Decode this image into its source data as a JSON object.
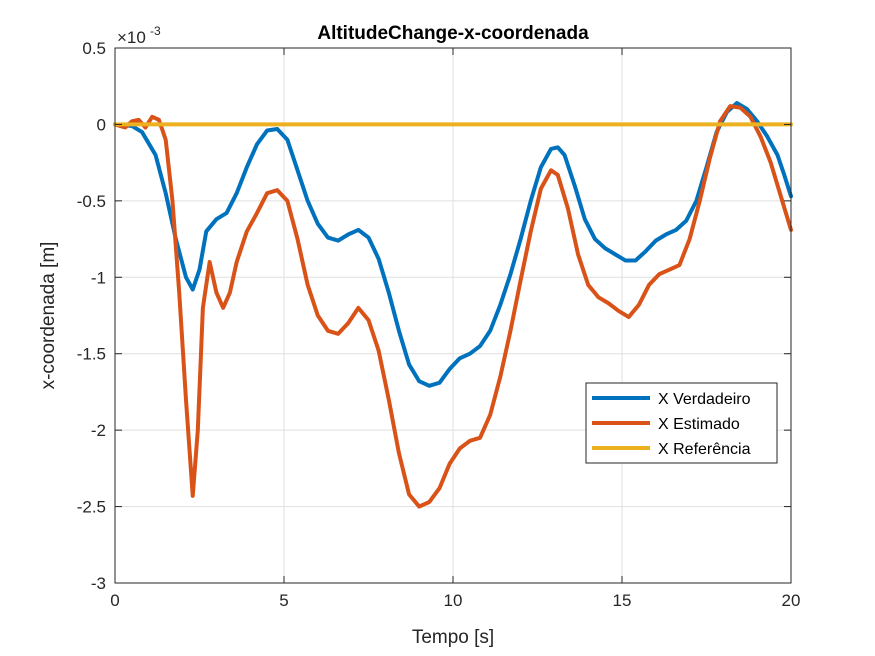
{
  "chart_data": {
    "type": "line",
    "title": "AltitudeChange-x-coordenada",
    "xlabel": "Tempo [s]",
    "ylabel": "x-coordenada [m]",
    "exponent_base": "×10",
    "exponent_power": "-3",
    "xlim": [
      0,
      20
    ],
    "ylim": [
      -3,
      0.5
    ],
    "xticks": [
      0,
      5,
      10,
      15,
      20
    ],
    "yticks": [
      -3,
      -2.5,
      -2,
      -1.5,
      -1,
      -0.5,
      0,
      0.5
    ],
    "xtick_labels": [
      "0",
      "5",
      "10",
      "15",
      "20"
    ],
    "ytick_labels": [
      "-3",
      "-2.5",
      "-2",
      "-1.5",
      "-1",
      "-0.5",
      "0",
      "0.5"
    ],
    "grid": true,
    "legend_position": "right",
    "series": [
      {
        "name": "X Verdadeiro",
        "color": "#0072BD",
        "points": [
          [
            0,
            0
          ],
          [
            0.5,
            -0.01
          ],
          [
            0.8,
            -0.05
          ],
          [
            1.2,
            -0.2
          ],
          [
            1.5,
            -0.45
          ],
          [
            1.8,
            -0.75
          ],
          [
            2.1,
            -1.0
          ],
          [
            2.3,
            -1.08
          ],
          [
            2.5,
            -0.95
          ],
          [
            2.7,
            -0.7
          ],
          [
            3.0,
            -0.62
          ],
          [
            3.3,
            -0.58
          ],
          [
            3.6,
            -0.45
          ],
          [
            3.9,
            -0.28
          ],
          [
            4.2,
            -0.13
          ],
          [
            4.5,
            -0.04
          ],
          [
            4.8,
            -0.03
          ],
          [
            5.1,
            -0.1
          ],
          [
            5.4,
            -0.3
          ],
          [
            5.7,
            -0.5
          ],
          [
            6.0,
            -0.65
          ],
          [
            6.3,
            -0.74
          ],
          [
            6.6,
            -0.76
          ],
          [
            6.9,
            -0.72
          ],
          [
            7.2,
            -0.69
          ],
          [
            7.5,
            -0.74
          ],
          [
            7.8,
            -0.88
          ],
          [
            8.1,
            -1.1
          ],
          [
            8.4,
            -1.35
          ],
          [
            8.7,
            -1.57
          ],
          [
            9.0,
            -1.68
          ],
          [
            9.3,
            -1.71
          ],
          [
            9.6,
            -1.69
          ],
          [
            9.9,
            -1.6
          ],
          [
            10.2,
            -1.53
          ],
          [
            10.5,
            -1.5
          ],
          [
            10.8,
            -1.45
          ],
          [
            11.1,
            -1.35
          ],
          [
            11.4,
            -1.18
          ],
          [
            11.7,
            -0.98
          ],
          [
            12.0,
            -0.75
          ],
          [
            12.3,
            -0.5
          ],
          [
            12.6,
            -0.28
          ],
          [
            12.9,
            -0.16
          ],
          [
            13.1,
            -0.15
          ],
          [
            13.3,
            -0.2
          ],
          [
            13.6,
            -0.4
          ],
          [
            13.9,
            -0.62
          ],
          [
            14.2,
            -0.75
          ],
          [
            14.5,
            -0.81
          ],
          [
            14.8,
            -0.85
          ],
          [
            15.1,
            -0.89
          ],
          [
            15.4,
            -0.89
          ],
          [
            15.7,
            -0.83
          ],
          [
            16.0,
            -0.76
          ],
          [
            16.3,
            -0.72
          ],
          [
            16.6,
            -0.69
          ],
          [
            16.9,
            -0.63
          ],
          [
            17.2,
            -0.5
          ],
          [
            17.5,
            -0.28
          ],
          [
            17.8,
            -0.05
          ],
          [
            18.1,
            0.08
          ],
          [
            18.4,
            0.14
          ],
          [
            18.7,
            0.1
          ],
          [
            19.0,
            0.02
          ],
          [
            19.3,
            -0.08
          ],
          [
            19.6,
            -0.2
          ],
          [
            19.8,
            -0.33
          ],
          [
            20.0,
            -0.47
          ]
        ]
      },
      {
        "name": "X Estimado",
        "color": "#D95319",
        "points": [
          [
            0,
            0
          ],
          [
            0.3,
            -0.02
          ],
          [
            0.5,
            0.02
          ],
          [
            0.7,
            0.03
          ],
          [
            0.9,
            -0.02
          ],
          [
            1.1,
            0.05
          ],
          [
            1.3,
            0.03
          ],
          [
            1.5,
            -0.1
          ],
          [
            1.7,
            -0.5
          ],
          [
            1.9,
            -1.1
          ],
          [
            2.1,
            -1.8
          ],
          [
            2.3,
            -2.43
          ],
          [
            2.45,
            -2.0
          ],
          [
            2.6,
            -1.2
          ],
          [
            2.8,
            -0.9
          ],
          [
            3.0,
            -1.1
          ],
          [
            3.2,
            -1.2
          ],
          [
            3.4,
            -1.1
          ],
          [
            3.6,
            -0.9
          ],
          [
            3.9,
            -0.7
          ],
          [
            4.2,
            -0.58
          ],
          [
            4.5,
            -0.45
          ],
          [
            4.8,
            -0.43
          ],
          [
            5.1,
            -0.5
          ],
          [
            5.4,
            -0.75
          ],
          [
            5.7,
            -1.05
          ],
          [
            6.0,
            -1.25
          ],
          [
            6.3,
            -1.35
          ],
          [
            6.6,
            -1.37
          ],
          [
            6.9,
            -1.3
          ],
          [
            7.2,
            -1.2
          ],
          [
            7.5,
            -1.28
          ],
          [
            7.8,
            -1.48
          ],
          [
            8.1,
            -1.8
          ],
          [
            8.4,
            -2.15
          ],
          [
            8.7,
            -2.42
          ],
          [
            9.0,
            -2.5
          ],
          [
            9.3,
            -2.47
          ],
          [
            9.6,
            -2.38
          ],
          [
            9.9,
            -2.22
          ],
          [
            10.2,
            -2.12
          ],
          [
            10.5,
            -2.07
          ],
          [
            10.8,
            -2.05
          ],
          [
            11.1,
            -1.9
          ],
          [
            11.4,
            -1.65
          ],
          [
            11.7,
            -1.35
          ],
          [
            12.0,
            -1.02
          ],
          [
            12.3,
            -0.7
          ],
          [
            12.6,
            -0.42
          ],
          [
            12.9,
            -0.3
          ],
          [
            13.1,
            -0.33
          ],
          [
            13.4,
            -0.55
          ],
          [
            13.7,
            -0.85
          ],
          [
            14.0,
            -1.05
          ],
          [
            14.3,
            -1.13
          ],
          [
            14.6,
            -1.17
          ],
          [
            14.9,
            -1.22
          ],
          [
            15.2,
            -1.26
          ],
          [
            15.5,
            -1.18
          ],
          [
            15.8,
            -1.05
          ],
          [
            16.1,
            -0.98
          ],
          [
            16.4,
            -0.95
          ],
          [
            16.7,
            -0.92
          ],
          [
            17.0,
            -0.75
          ],
          [
            17.3,
            -0.5
          ],
          [
            17.6,
            -0.22
          ],
          [
            17.9,
            0.02
          ],
          [
            18.2,
            0.12
          ],
          [
            18.5,
            0.11
          ],
          [
            18.8,
            0.05
          ],
          [
            19.1,
            -0.08
          ],
          [
            19.4,
            -0.25
          ],
          [
            19.7,
            -0.47
          ],
          [
            20.0,
            -0.69
          ]
        ]
      },
      {
        "name": "X Referência",
        "color": "#EDB120",
        "points": [
          [
            0,
            0
          ],
          [
            20,
            0
          ]
        ]
      }
    ]
  }
}
